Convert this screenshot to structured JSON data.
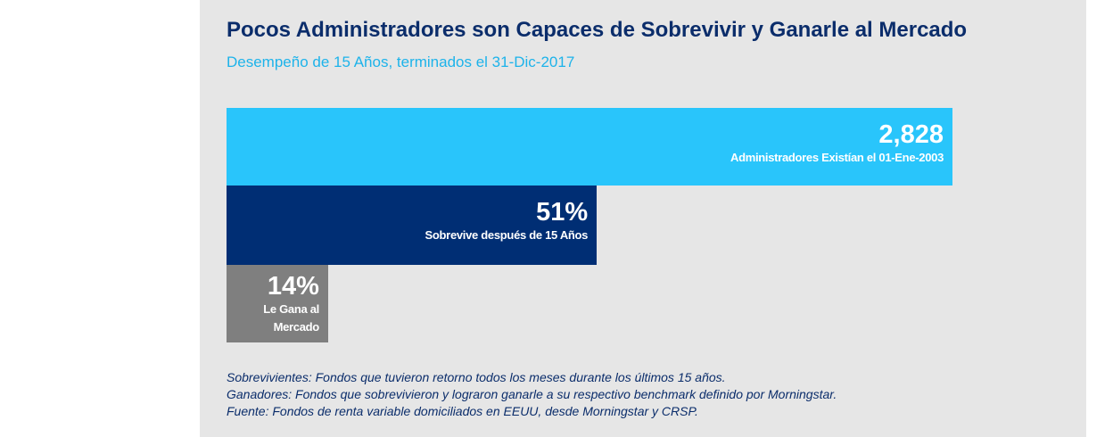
{
  "chart_data": {
    "type": "bar",
    "title": "Pocos Administradores son Capaces de Sobrevivir y Ganarle al Mercado",
    "subtitle": "Desempeño de 15 Años, terminados el 31-Dic-2017",
    "categories": [
      "Administradores Existían el 01-Ene-2003",
      "Sobrevive después de 15 Años",
      "Le Gana al Mercado"
    ],
    "values": [
      2828,
      51,
      14
    ],
    "value_labels": [
      "2,828",
      "51%",
      "14%"
    ],
    "colors": [
      "#29c5fb",
      "#002e74",
      "#7f7f7f"
    ],
    "notes": [
      "Sobrevivientes: Fondos que tuvieron retorno todos los meses durante los últimos 15 años.",
      "Ganadores: Fondos que sobrevivieron y lograron ganarle a su respectivo benchmark definido por Morningstar.",
      "Fuente: Fondos de renta variable domiciliados en EEUU, desde Morningstar y CRSP."
    ]
  }
}
